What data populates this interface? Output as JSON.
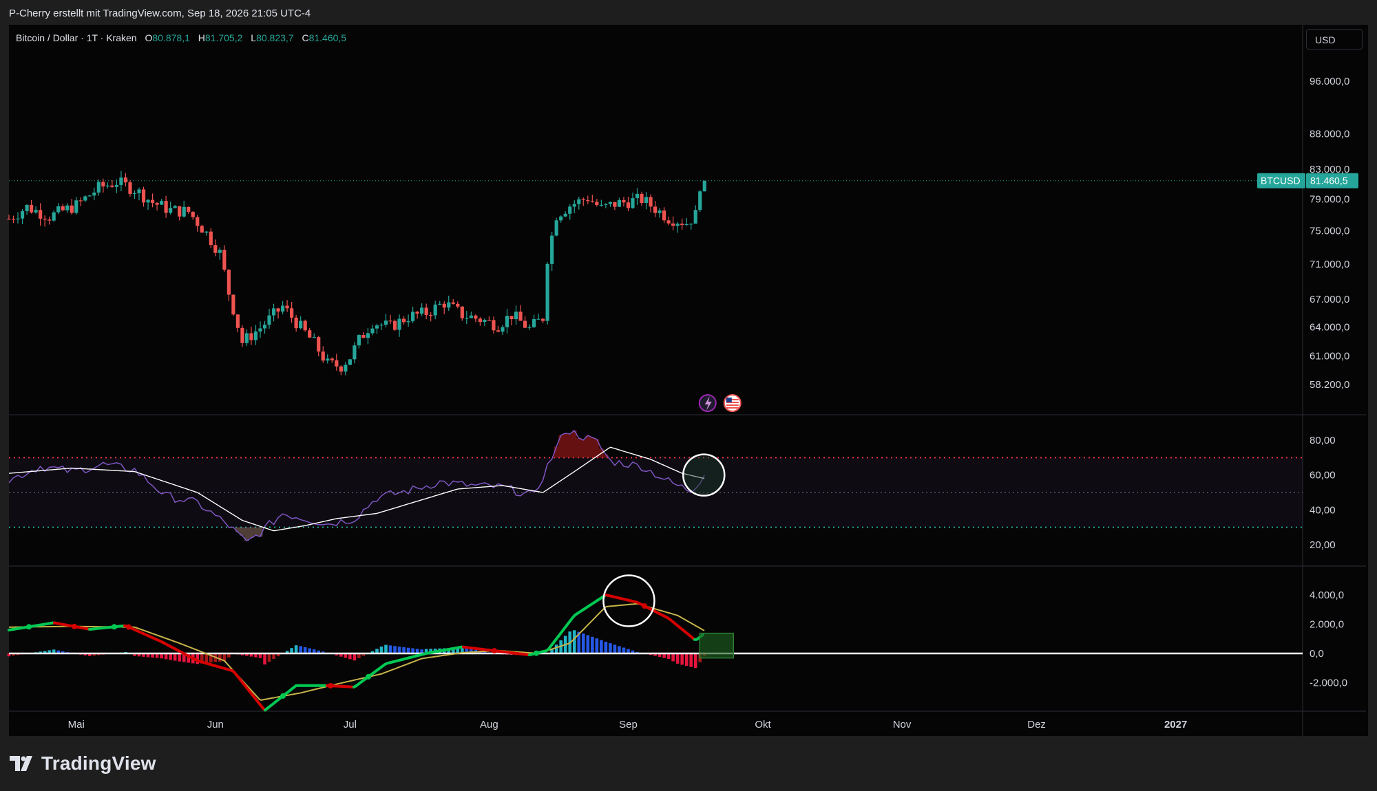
{
  "header": {
    "attribution": "P-Cherry erstellt mit TradingView.com, Sep 18, 2026 21:05 UTC-4"
  },
  "legend": {
    "symbol": "Bitcoin / Dollar · 1T · Kraken",
    "open_label": "O",
    "open": "80.878,1",
    "high_label": "H",
    "high": "81.705,2",
    "low_label": "L",
    "low": "80.823,7",
    "close_label": "C",
    "close": "81.460,5"
  },
  "currency_button": "USD",
  "price_tag": {
    "symbol": "BTCUSD",
    "price": "81.460,5"
  },
  "footer": {
    "brand": "TradingView"
  },
  "colors": {
    "up": "#26a69a",
    "down": "#ef5350",
    "rsi_line": "#7e57c2",
    "rsi_ma": "#ffffff",
    "rsi_overbought": "#f23645",
    "rsi_oversold": "#22ab94",
    "macd_up": "#00c853",
    "macd_down": "#d50000",
    "signal": "#c8b44a",
    "hist_pos_strong": "#26c6da",
    "hist_pos_weak": "#2962ff",
    "hist_neg_strong": "#ff1744",
    "hist_neg_weak": "#b71c1c"
  },
  "chart_data": [
    {
      "type": "candlestick",
      "title": "Bitcoin / Dollar · 1T · Kraken",
      "price_scale": "log",
      "x_axis_ticks": [
        "Mai",
        "Jun",
        "Jul",
        "Aug",
        "Sep",
        "Okt",
        "Nov",
        "Dez",
        "2027"
      ],
      "y_axis_ticks": [
        "96.000,0",
        "88.000,0",
        "83.000,0",
        "79.000,0",
        "75.000,0",
        "71.000,0",
        "67.000,0",
        "64.000,0",
        "61.000,0",
        "58.200,0"
      ],
      "y_axis_values": [
        96000,
        88000,
        83000,
        79000,
        75000,
        71000,
        67000,
        64000,
        61000,
        58200
      ],
      "close_path": [
        [
          "2026-04-16",
          76500
        ],
        [
          "2026-04-20",
          78000
        ],
        [
          "2026-04-25",
          76800
        ],
        [
          "2026-05-01",
          78200
        ],
        [
          "2026-05-06",
          80500
        ],
        [
          "2026-05-10",
          81300
        ],
        [
          "2026-05-14",
          80300
        ],
        [
          "2026-05-18",
          78600
        ],
        [
          "2026-05-22",
          77600
        ],
        [
          "2026-05-26",
          77400
        ],
        [
          "2026-05-30",
          74700
        ],
        [
          "2026-06-02",
          72300
        ],
        [
          "2026-06-04",
          67700
        ],
        [
          "2026-06-07",
          62400
        ],
        [
          "2026-06-11",
          63900
        ],
        [
          "2026-06-16",
          66200
        ],
        [
          "2026-06-19",
          64500
        ],
        [
          "2026-06-23",
          62300
        ],
        [
          "2026-06-26",
          60200
        ],
        [
          "2026-06-29",
          60000
        ],
        [
          "2026-07-01",
          60900
        ],
        [
          "2026-07-03",
          62600
        ],
        [
          "2026-07-06",
          64500
        ],
        [
          "2026-07-10",
          64000
        ],
        [
          "2026-07-14",
          65100
        ],
        [
          "2026-07-18",
          65500
        ],
        [
          "2026-07-22",
          66600
        ],
        [
          "2026-07-26",
          65300
        ],
        [
          "2026-07-30",
          64800
        ],
        [
          "2026-08-03",
          64200
        ],
        [
          "2026-08-06",
          65300
        ],
        [
          "2026-08-10",
          63800
        ],
        [
          "2026-08-13",
          65000
        ],
        [
          "2026-08-14",
          71700
        ],
        [
          "2026-08-16",
          77000
        ],
        [
          "2026-08-19",
          78200
        ],
        [
          "2026-08-23",
          79200
        ],
        [
          "2026-08-26",
          77800
        ],
        [
          "2026-08-29",
          78400
        ],
        [
          "2026-09-01",
          78700
        ],
        [
          "2026-09-04",
          79000
        ],
        [
          "2026-09-07",
          77800
        ],
        [
          "2026-09-10",
          76600
        ],
        [
          "2026-09-14",
          76000
        ],
        [
          "2026-09-16",
          77000
        ],
        [
          "2026-09-17",
          80900
        ],
        [
          "2026-09-18",
          81460.5
        ]
      ],
      "last_price": 81460.5,
      "events": [
        "lightning-icon",
        "us-flag-icon"
      ]
    },
    {
      "type": "line",
      "indicator": "RSI",
      "y_axis_ticks": [
        "80,00",
        "60,00",
        "40,00",
        "20,00"
      ],
      "y_axis_values": [
        80,
        60,
        40,
        20
      ],
      "bands": {
        "upper": 70,
        "middle": 50,
        "lower": 30
      },
      "rsi": [
        [
          "2026-04-16",
          57
        ],
        [
          "2026-04-23",
          65
        ],
        [
          "2026-04-30",
          62
        ],
        [
          "2026-05-07",
          66
        ],
        [
          "2026-05-14",
          63
        ],
        [
          "2026-05-21",
          48
        ],
        [
          "2026-05-28",
          44
        ],
        [
          "2026-06-04",
          31
        ],
        [
          "2026-06-08",
          21
        ],
        [
          "2026-06-11",
          27
        ],
        [
          "2026-06-16",
          38
        ],
        [
          "2026-06-21",
          35
        ],
        [
          "2026-06-26",
          32
        ],
        [
          "2026-07-02",
          35
        ],
        [
          "2026-07-07",
          47
        ],
        [
          "2026-07-14",
          51
        ],
        [
          "2026-07-21",
          56
        ],
        [
          "2026-07-28",
          54
        ],
        [
          "2026-08-04",
          53
        ],
        [
          "2026-08-11",
          48
        ],
        [
          "2026-08-14",
          65
        ],
        [
          "2026-08-18",
          86
        ],
        [
          "2026-08-25",
          79
        ],
        [
          "2026-08-28",
          68
        ],
        [
          "2026-09-04",
          65
        ],
        [
          "2026-09-11",
          55
        ],
        [
          "2026-09-15",
          51
        ],
        [
          "2026-09-18",
          60
        ]
      ],
      "rsi_ma": [
        [
          "2026-04-16",
          61
        ],
        [
          "2026-04-30",
          64
        ],
        [
          "2026-05-14",
          62
        ],
        [
          "2026-05-28",
          50
        ],
        [
          "2026-06-07",
          34
        ],
        [
          "2026-06-14",
          28
        ],
        [
          "2026-06-21",
          31
        ],
        [
          "2026-06-28",
          35
        ],
        [
          "2026-07-07",
          38
        ],
        [
          "2026-07-16",
          45
        ],
        [
          "2026-07-25",
          52
        ],
        [
          "2026-08-04",
          54
        ],
        [
          "2026-08-13",
          50
        ],
        [
          "2026-08-20",
          62
        ],
        [
          "2026-08-28",
          76
        ],
        [
          "2026-09-06",
          69
        ],
        [
          "2026-09-13",
          61
        ],
        [
          "2026-09-18",
          58
        ]
      ]
    },
    {
      "type": "line",
      "indicator": "MACD",
      "y_axis_ticks": [
        "4.000,0",
        "2.000,0",
        "0,0",
        "-2.000,0"
      ],
      "y_axis_values": [
        4000,
        2000,
        0,
        -2000
      ],
      "macd": [
        [
          "2026-04-16",
          1600
        ],
        [
          "2026-04-26",
          2100
        ],
        [
          "2026-05-04",
          1650
        ],
        [
          "2026-05-12",
          1900
        ],
        [
          "2026-05-20",
          800
        ],
        [
          "2026-05-28",
          -500
        ],
        [
          "2026-06-05",
          -1200
        ],
        [
          "2026-06-12",
          -3900
        ],
        [
          "2026-06-19",
          -2200
        ],
        [
          "2026-06-26",
          -2200
        ],
        [
          "2026-07-02",
          -2300
        ],
        [
          "2026-07-09",
          -700
        ],
        [
          "2026-07-18",
          0
        ],
        [
          "2026-07-26",
          450
        ],
        [
          "2026-08-03",
          150
        ],
        [
          "2026-08-10",
          -100
        ],
        [
          "2026-08-14",
          200
        ],
        [
          "2026-08-20",
          2600
        ],
        [
          "2026-08-27",
          4000
        ],
        [
          "2026-09-03",
          3500
        ],
        [
          "2026-09-10",
          2400
        ],
        [
          "2026-09-16",
          900
        ],
        [
          "2026-09-18",
          1350
        ]
      ],
      "signal": [
        [
          "2026-04-16",
          1800
        ],
        [
          "2026-04-30",
          1850
        ],
        [
          "2026-05-14",
          1800
        ],
        [
          "2026-05-24",
          700
        ],
        [
          "2026-06-03",
          -500
        ],
        [
          "2026-06-11",
          -3200
        ],
        [
          "2026-06-20",
          -2700
        ],
        [
          "2026-06-28",
          -2100
        ],
        [
          "2026-07-08",
          -1400
        ],
        [
          "2026-07-17",
          -350
        ],
        [
          "2026-07-26",
          50
        ],
        [
          "2026-08-03",
          200
        ],
        [
          "2026-08-12",
          0
        ],
        [
          "2026-08-19",
          700
        ],
        [
          "2026-08-27",
          3200
        ],
        [
          "2026-09-03",
          3400
        ],
        [
          "2026-09-12",
          2600
        ],
        [
          "2026-09-18",
          1550
        ]
      ],
      "histogram_note": "positive bars cyan/blue, negative bars red"
    }
  ]
}
